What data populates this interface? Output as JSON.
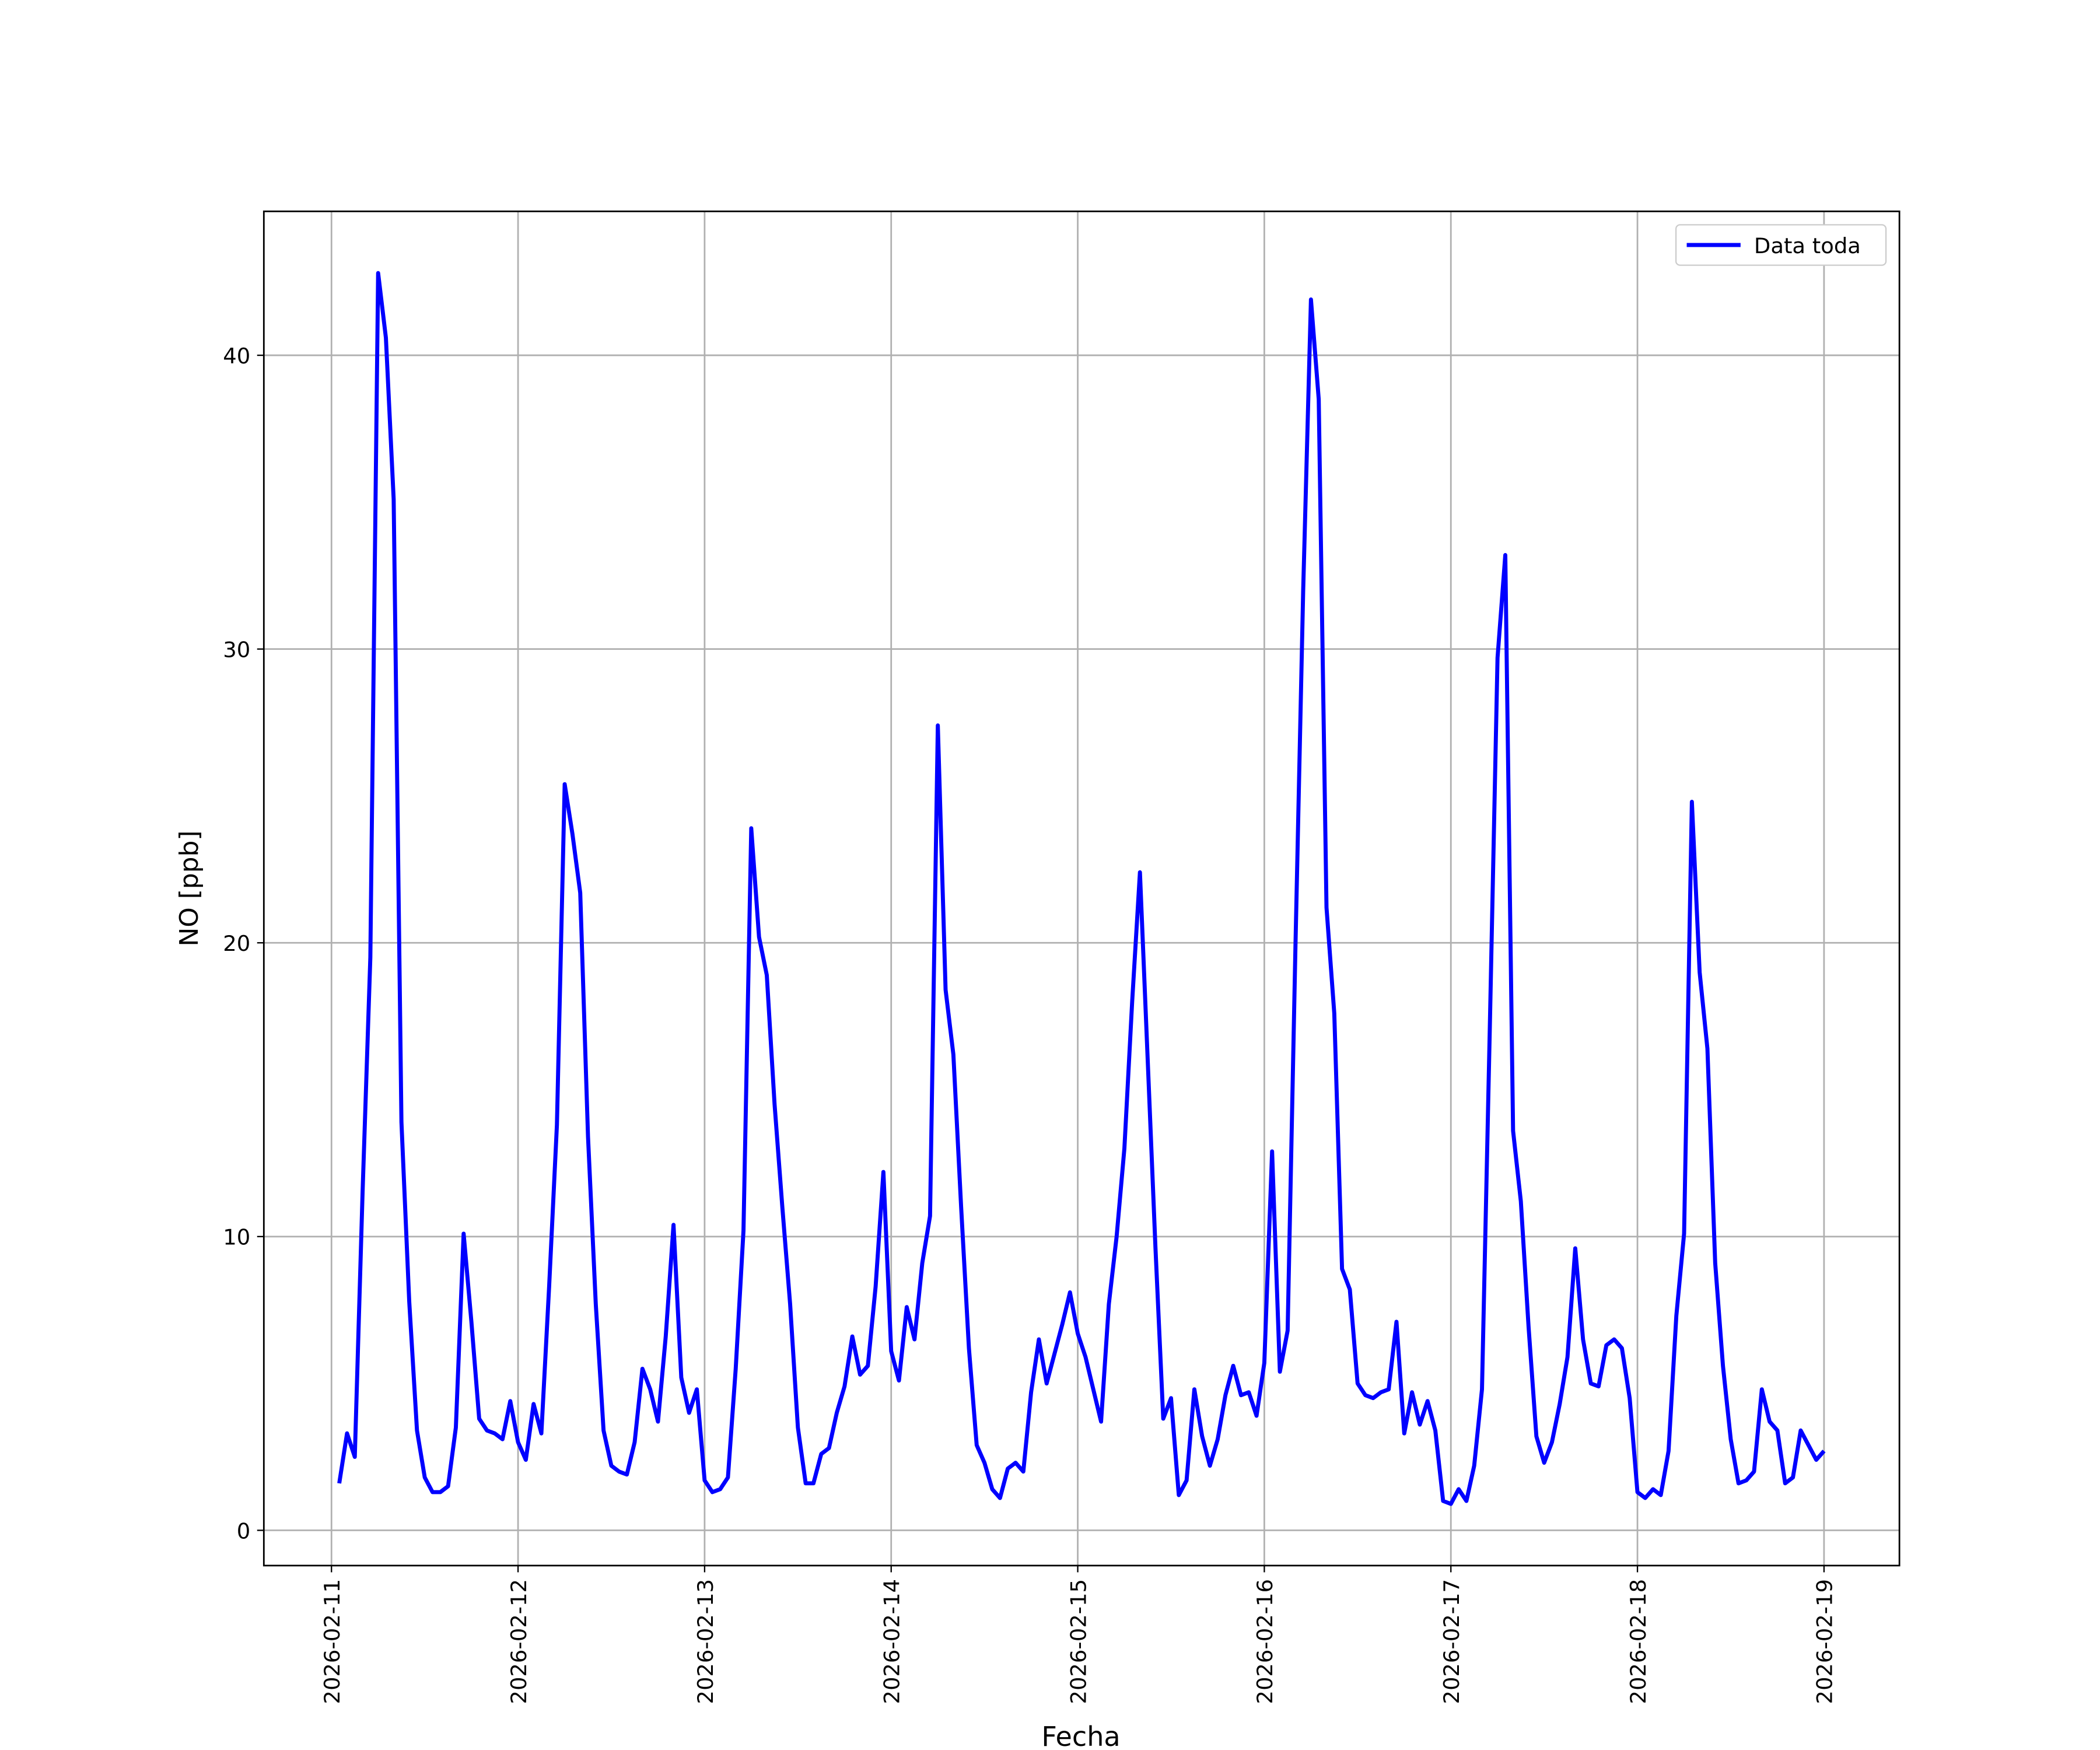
{
  "chart_data": {
    "type": "line",
    "xlabel": "Fecha",
    "ylabel": "NO [ppb]",
    "x": [
      1,
      2,
      3,
      4,
      5,
      6,
      7,
      8,
      9,
      10,
      11,
      12,
      13,
      14,
      15,
      16,
      17,
      18,
      19,
      20,
      21,
      22,
      23,
      24,
      25,
      26,
      27,
      28,
      29,
      30,
      31,
      32,
      33,
      34,
      35,
      36,
      37,
      38,
      39,
      40,
      41,
      42,
      43,
      44,
      45,
      46,
      47,
      48,
      49,
      50,
      51,
      52,
      53,
      54,
      55,
      56,
      57,
      58,
      59,
      60,
      61,
      62,
      63,
      64,
      65,
      66,
      67,
      68,
      69,
      70,
      71,
      72,
      73,
      74,
      75,
      76,
      77,
      78,
      79,
      80,
      81,
      82,
      83,
      84,
      85,
      86,
      87,
      88,
      89,
      90,
      91,
      92,
      93,
      94,
      95,
      96,
      97,
      98,
      99,
      100,
      101,
      102,
      103,
      104,
      105,
      106,
      107,
      108,
      109,
      110,
      111,
      112,
      113,
      114,
      115,
      116,
      117,
      118,
      119,
      120,
      121,
      122,
      123,
      124,
      125,
      126,
      127,
      128,
      129,
      130,
      131,
      132,
      133,
      134,
      135,
      136,
      137,
      138,
      139,
      140,
      141,
      142,
      143,
      144,
      145,
      146,
      147,
      148,
      149,
      150,
      151,
      152,
      153,
      154,
      155,
      156,
      157,
      158,
      159,
      160,
      161,
      162,
      163,
      164,
      165,
      166,
      167,
      168,
      169,
      170,
      171,
      172,
      173,
      174,
      175,
      176,
      177,
      178,
      179,
      180,
      181,
      182,
      183,
      184,
      185,
      186,
      187,
      188,
      189,
      190,
      191,
      192
    ],
    "series": [
      {
        "name": "Data toda",
        "color": "#0000ff",
        "values": [
          1.6,
          3.3,
          2.5,
          11.5,
          19.5,
          42.8,
          40.6,
          35.1,
          13.9,
          7.8,
          3.4,
          1.8,
          1.3,
          1.3,
          1.5,
          3.5,
          10.1,
          7.1,
          3.8,
          3.4,
          3.3,
          3.1,
          4.4,
          3.0,
          2.4,
          4.3,
          3.3,
          8.3,
          13.8,
          25.4,
          23.7,
          21.7,
          13.4,
          7.7,
          3.4,
          2.2,
          2.0,
          1.9,
          3.0,
          5.5,
          4.8,
          3.7,
          6.6,
          10.4,
          5.2,
          4.0,
          4.8,
          1.7,
          1.3,
          1.4,
          1.8,
          5.5,
          10.2,
          23.9,
          20.2,
          18.9,
          14.5,
          11.0,
          7.7,
          3.5,
          1.6,
          1.6,
          2.6,
          2.8,
          4.0,
          4.9,
          6.6,
          5.3,
          5.6,
          8.3,
          12.2,
          6.1,
          5.1,
          7.6,
          6.5,
          9.1,
          10.7,
          27.4,
          18.4,
          16.2,
          11.0,
          6.2,
          2.9,
          2.3,
          1.4,
          1.1,
          2.1,
          2.3,
          2.0,
          4.7,
          6.5,
          5.0,
          6.0,
          7.0,
          8.1,
          6.7,
          5.9,
          4.8,
          3.7,
          7.7,
          10.0,
          13.0,
          18.0,
          22.4,
          16.0,
          9.6,
          3.8,
          4.5,
          1.2,
          1.7,
          4.8,
          3.2,
          2.2,
          3.1,
          4.6,
          5.6,
          4.6,
          4.7,
          3.9,
          5.7,
          12.9,
          5.4,
          6.8,
          19.8,
          32.0,
          41.9,
          38.5,
          21.2,
          17.6,
          8.9,
          8.2,
          5.0,
          4.6,
          4.5,
          4.7,
          4.8,
          7.1,
          3.3,
          4.7,
          3.6,
          4.4,
          3.4,
          1.0,
          0.9,
          1.4,
          1.0,
          2.2,
          4.8,
          17.0,
          29.7,
          33.2,
          13.6,
          11.2,
          6.9,
          3.2,
          2.3,
          3.0,
          4.3,
          5.9,
          9.6,
          6.5,
          5.0,
          4.9,
          6.3,
          6.5,
          6.2,
          4.5,
          1.3,
          1.1,
          1.4,
          1.2,
          2.7,
          7.3,
          10.1,
          24.8,
          19.0,
          16.4,
          9.1,
          5.6,
          3.1,
          1.6,
          1.7,
          2.0,
          4.8,
          3.7,
          3.4,
          1.6,
          1.8,
          3.4,
          2.9,
          2.4,
          2.7
        ]
      }
    ],
    "xlim": [
      -8.7,
      201.7
    ],
    "xticks": [
      {
        "value": 0,
        "label": "2026-02-11"
      },
      {
        "value": 24,
        "label": "2026-02-12"
      },
      {
        "value": 48,
        "label": "2026-02-13"
      },
      {
        "value": 72,
        "label": "2026-02-14"
      },
      {
        "value": 96,
        "label": "2026-02-15"
      },
      {
        "value": 120,
        "label": "2026-02-16"
      },
      {
        "value": 144,
        "label": "2026-02-17"
      },
      {
        "value": 168,
        "label": "2026-02-18"
      },
      {
        "value": 192,
        "label": "2026-02-19"
      }
    ],
    "ylim": [
      -1.2,
      44.9
    ],
    "yticks": [
      0,
      10,
      20,
      30,
      40
    ],
    "grid": true,
    "legend": "upper right"
  }
}
